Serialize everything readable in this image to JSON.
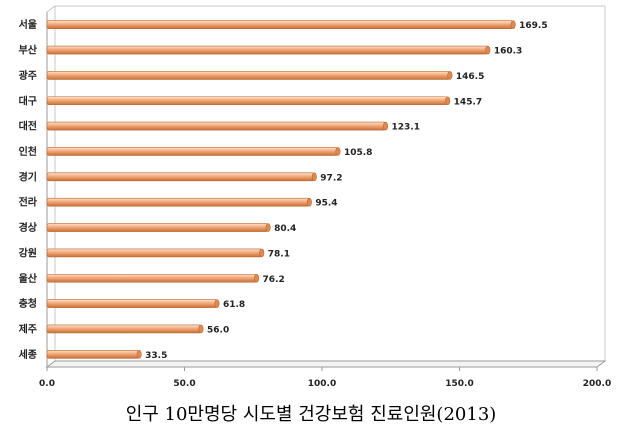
{
  "chart_data": {
    "type": "bar",
    "orientation": "horizontal",
    "title": "인구 10만명당 시도별 건강보험 진료인원(2013)",
    "categories": [
      "서울",
      "부산",
      "광주",
      "대구",
      "대전",
      "인천",
      "경기",
      "전라",
      "경상",
      "강원",
      "울산",
      "충청",
      "제주",
      "세종"
    ],
    "values": [
      169.5,
      160.3,
      146.5,
      145.7,
      123.1,
      105.8,
      97.2,
      95.4,
      80.4,
      78.1,
      76.2,
      61.8,
      56.0,
      33.5
    ],
    "value_labels": [
      "169.5",
      "160.3",
      "146.5",
      "145.7",
      "123.1",
      "105.8",
      "97.2",
      "95.4",
      "80.4",
      "78.1",
      "76.2",
      "61.8",
      "56.0",
      "33.5"
    ],
    "xlim": [
      0,
      200
    ],
    "xticks": [
      0,
      50,
      100,
      150,
      200
    ],
    "xtick_labels": [
      "0.0",
      "50.0",
      "100.0",
      "150.0",
      "200.0"
    ],
    "xlabel": "",
    "ylabel": "",
    "grid": false,
    "legend": "none",
    "bar_color": "#f0a070",
    "bar_highlight": "#fcd9bd",
    "bar_shadow": "#c26a34"
  }
}
